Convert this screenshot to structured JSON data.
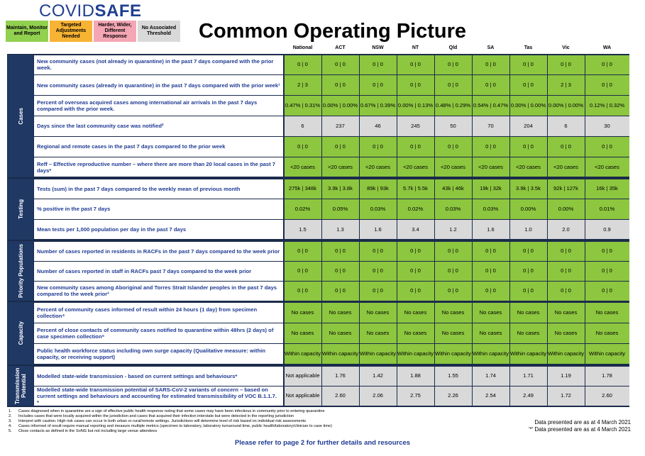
{
  "header": {
    "logo": {
      "part1": "COVID",
      "part2": "SAFE"
    },
    "title": "Common Operating Picture",
    "legend": [
      {
        "label": "Maintain, Monitor and Report",
        "color": "#92d050"
      },
      {
        "label": "Targeted Adjustments Needed",
        "color": "#f7b334"
      },
      {
        "label": "Harder, Wider, Different Response",
        "color": "#f4a6b4"
      },
      {
        "label": "No Associated Threshold",
        "color": "#d9d9d9"
      }
    ]
  },
  "table": {
    "columns": [
      "National",
      "ACT",
      "NSW",
      "NT",
      "Qld",
      "SA",
      "Tas",
      "Vic",
      "WA"
    ],
    "groups": [
      {
        "name": "Cases",
        "rows": [
          {
            "label": "New community cases (not already in quarantine) in the past 7 days compared with the prior week.",
            "color": "#8dc63f",
            "values": [
              "0 | 0",
              "0 | 0",
              "0 | 0",
              "0 | 0",
              "0 | 0",
              "0 | 0",
              "0 | 0",
              "0 | 0",
              "0 | 0"
            ]
          },
          {
            "label": "New community cases (already in quarantine) in the past 7 days compared with the prior week¹",
            "color": "#8dc63f",
            "values": [
              "2 | 3",
              "0 | 0",
              "0 | 0",
              "0 | 0",
              "0 | 0",
              "0 | 0",
              "0 | 0",
              "2 | 3",
              "0 | 0"
            ]
          },
          {
            "label": "Percent of overseas acquired cases among international air arrivals in the past 7 days compared with the prior week.",
            "color": "#8dc63f",
            "values": [
              "0.47% | 0.31%",
              "0.00% | 0.00%",
              "0.67% | 0.39%",
              "0.00% | 0.13%",
              "0.48% | 0.29%",
              "0.54% | 0.47%",
              "0.00% | 0.00%",
              "0.00% | 0.00%",
              "0.12% | 0.32%"
            ]
          },
          {
            "label": "Days since the last community case was notified²",
            "color": "#d9d9d9",
            "values": [
              "6",
              "237",
              "46",
              "245",
              "50",
              "70",
              "204",
              "6",
              "30"
            ]
          },
          {
            "label": "Regional and remote cases in the past 7 days compared to the prior week",
            "color": "#8dc63f",
            "values": [
              "0 | 0",
              "0 | 0",
              "0 | 0",
              "0 | 0",
              "0 | 0",
              "0 | 0",
              "0 | 0",
              "0 | 0",
              "0 | 0"
            ]
          },
          {
            "label": "Reff – Effective reproductive number – where there are more than 20 local cases in the past 7 days*",
            "color": "#8dc63f",
            "values": [
              "<20 cases",
              "<20 cases",
              "<20 cases",
              "<20 cases",
              "<20 cases",
              "<20 cases",
              "<20 cases",
              "<20 cases",
              "<20 cases"
            ]
          }
        ]
      },
      {
        "name": "Testing",
        "rows": [
          {
            "label": "Tests (sum) in the past 7 days compared to the weekly mean of previous month",
            "color": "#8dc63f",
            "values": [
              "275k | 348k",
              "3.9k | 3.8k",
              "89k | 93k",
              "5.7k | 5.5k",
              "43k | 46k",
              "19k | 32k",
              "3.9k | 3.5k",
              "92k | 127k",
              "16k | 35k"
            ]
          },
          {
            "label": "% positive in the past 7 days",
            "color": "#8dc63f",
            "values": [
              "0.02%",
              "0.05%",
              "0.03%",
              "0.02%",
              "0.03%",
              "0.03%",
              "0.00%",
              "0.00%",
              "0.01%"
            ]
          },
          {
            "label": "Mean tests per 1,000 population per day in the past 7 days",
            "color": "#d9d9d9",
            "values": [
              "1.5",
              "1.3",
              "1.6",
              "3.4",
              "1.2",
              "1.6",
              "1.0",
              "2.0",
              "0.9"
            ]
          }
        ]
      },
      {
        "name": "Priority Populations",
        "rows": [
          {
            "label": "Number of cases reported in residents in RACFs in the past 7 days compared to the week prior",
            "color": "#8dc63f",
            "values": [
              "0 | 0",
              "0 | 0",
              "0 | 0",
              "0 | 0",
              "0 | 0",
              "0 | 0",
              "0 | 0",
              "0 | 0",
              "0 | 0"
            ]
          },
          {
            "label": "Number of cases reported in staff in RACFs past 7 days compared to the week prior",
            "color": "#8dc63f",
            "values": [
              "0 | 0",
              "0 | 0",
              "0 | 0",
              "0 | 0",
              "0 | 0",
              "0 | 0",
              "0 | 0",
              "0 | 0",
              "0 | 0"
            ]
          },
          {
            "label": "New community cases among Aboriginal and Torres Strait Islander peoples in the past 7 days compared to the week prior³",
            "color": "#8dc63f",
            "values": [
              "0 | 0",
              "0 | 0",
              "0 | 0",
              "0 | 0",
              "0 | 0",
              "0 | 0",
              "0 | 0",
              "0 | 0",
              "0 | 0"
            ]
          }
        ]
      },
      {
        "name": "Capacity",
        "rows": [
          {
            "label": "Percent of community cases informed of result within 24 hours (1 day) from specimen collection⁴",
            "color": "#8dc63f",
            "values": [
              "No cases",
              "No cases",
              "No cases",
              "No cases",
              "No cases",
              "No cases",
              "No cases",
              "No cases",
              "No cases"
            ]
          },
          {
            "label": "Percent of close contacts of community cases notified to quarantine within 48hrs (2 days) of case specimen collection⁵",
            "color": "#8dc63f",
            "values": [
              "No cases",
              "No cases",
              "No cases",
              "No cases",
              "No cases",
              "No cases",
              "No cases",
              "No cases",
              "No cases"
            ]
          },
          {
            "label": "Public health workforce status including own surge capacity (Qualitative measure: within capacity, or receiving support)",
            "color": "#8dc63f",
            "values": [
              "Within capacity",
              "Within capacity",
              "Within capacity",
              "Within capacity",
              "Within capacity",
              "Within capacity",
              "Within capacity",
              "Within capacity",
              "Within capacity"
            ]
          }
        ]
      },
      {
        "name": "Transmission Potential",
        "rows": [
          {
            "label": "Modelled state-wide transmission - based on current settings and behaviours*",
            "color": "#d9d9d9",
            "values": [
              "Not applicable",
              "1.76",
              "1.42",
              "1.88",
              "1.55",
              "1.74",
              "1.71",
              "1.19",
              "1.78"
            ]
          },
          {
            "label": "Modelled state-wide transmission potential of SARS-CoV-2 variants of concern – based on current settings and behaviours and accounting for estimated transmissibility of VOC B.1.1.7. *",
            "color": "#d9d9d9",
            "values": [
              "Not applicable",
              "2.60",
              "2.06",
              "2.75",
              "2.26",
              "2.54",
              "2.49",
              "1.72",
              "2.60"
            ]
          }
        ]
      }
    ]
  },
  "footnotes": [
    {
      "n": "1.",
      "text": "Cases diagnosed when in quarantine are a sign of effective public health response noting that some cases may have been infectious in community prior to entering quarantine"
    },
    {
      "n": "2.",
      "text": "Includes cases that were locally acquired within the jurisdiction and cases that acquired their infection interstate but were detected in the reporting jurisdiction"
    },
    {
      "n": "3.",
      "text": "Interpret with caution. High risk cases can occur in both urban or rural/remote settings. Jurisdictions will determine level of risk based on individual risk assessments"
    },
    {
      "n": "4.",
      "text": "Cases informed of result require manual reporting and measure multiple metrics (specimen to laboratory, laboratory turnaround time, public health/laboratory/clinician to case time)"
    },
    {
      "n": "5.",
      "text": "Close contacts as defined in the SoNG but not including large venue attendees"
    }
  ],
  "as_at": [
    "Data presented are as at 4 March 2021",
    "'*' Data presented are as at 4 March 2021"
  ],
  "footer": "Please refer to page 2 for further details and resources"
}
